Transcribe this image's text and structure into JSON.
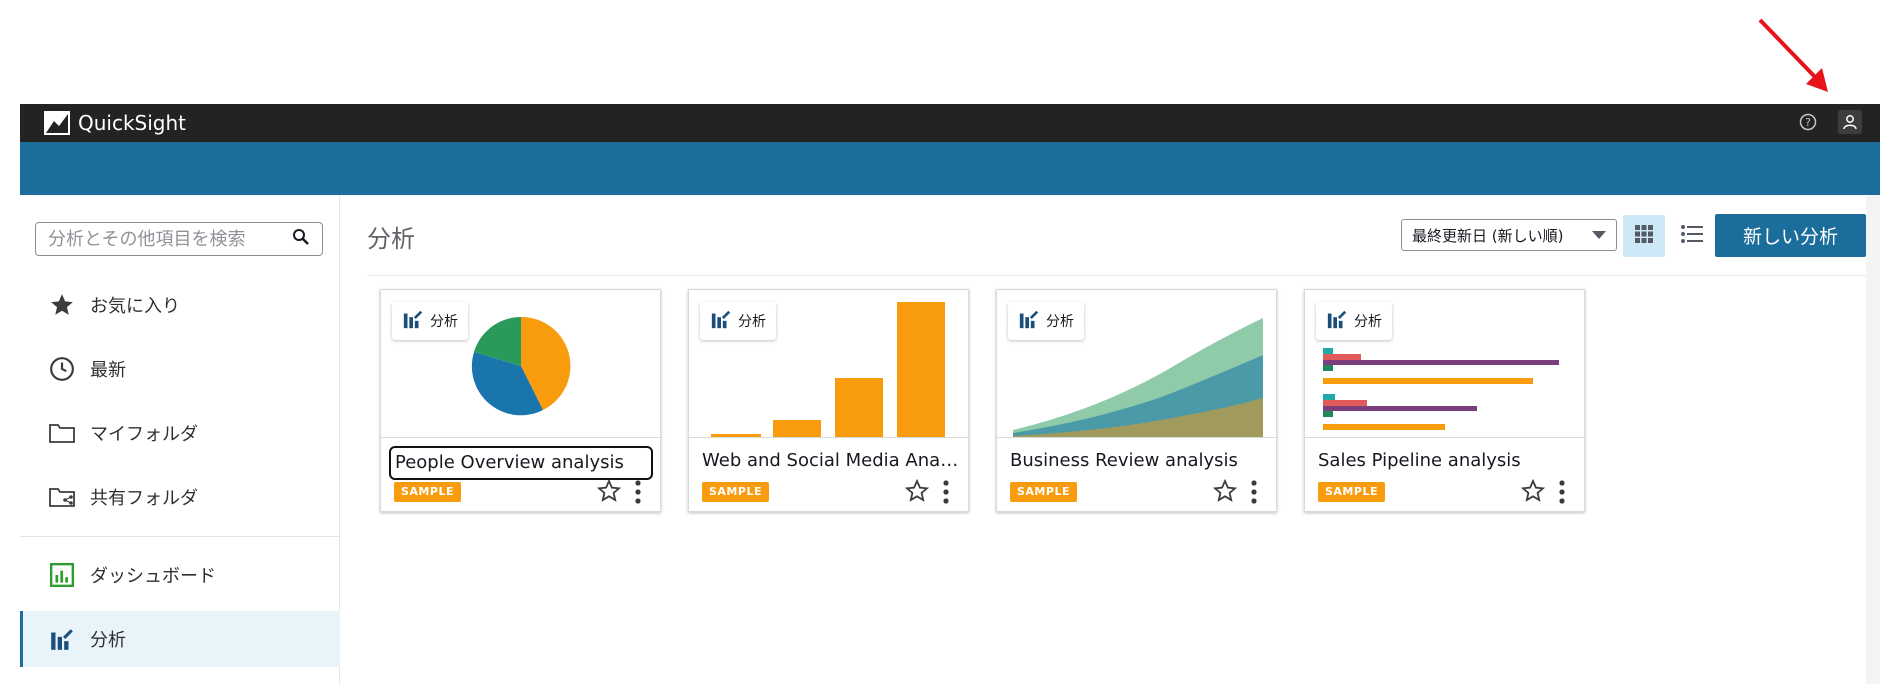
{
  "app": {
    "title": "QuickSight"
  },
  "header": {
    "help_icon": "help-circle-icon",
    "user_icon": "user-icon"
  },
  "search": {
    "placeholder": "分析とその他項目を検索"
  },
  "sidebar": {
    "items": [
      {
        "label": "お気に入り",
        "icon": "star-icon"
      },
      {
        "label": "最新",
        "icon": "clock-icon"
      },
      {
        "label": "マイフォルダ",
        "icon": "folder-icon"
      },
      {
        "label": "共有フォルダ",
        "icon": "shared-folder-icon"
      },
      {
        "label": "ダッシュボード",
        "icon": "dashboard-icon"
      },
      {
        "label": "分析",
        "icon": "analysis-icon",
        "active": true
      }
    ]
  },
  "main": {
    "title": "分析",
    "sort": {
      "selected": "最終更新日 (新しい順)"
    },
    "new_button": "新しい分析",
    "cards": [
      {
        "tag": "分析",
        "title": "People Overview analysis",
        "badge": "SAMPLE",
        "thumbnail": "pie"
      },
      {
        "tag": "分析",
        "title": "Web and Social Media Anal…",
        "badge": "SAMPLE",
        "thumbnail": "bar"
      },
      {
        "tag": "分析",
        "title": "Business Review analysis",
        "badge": "SAMPLE",
        "thumbnail": "area"
      },
      {
        "tag": "分析",
        "title": "Sales Pipeline analysis",
        "badge": "SAMPLE",
        "thumbnail": "hbar"
      }
    ]
  },
  "colors": {
    "topbar": "#232323",
    "bluebar": "#1b6e9b",
    "accent": "#1b6e9b",
    "badge": "#f89c0e",
    "annotation_arrow": "#e8141b"
  }
}
